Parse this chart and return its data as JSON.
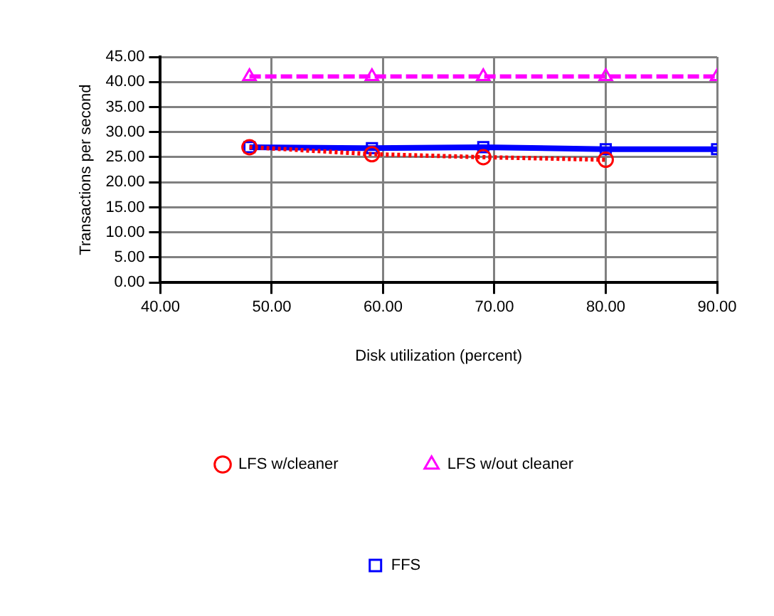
{
  "chart_data": {
    "type": "line",
    "xlabel": "Disk utilization (percent)",
    "ylabel": "Transactions per second",
    "xlim": [
      40,
      90
    ],
    "ylim": [
      0,
      45
    ],
    "xticks": [
      {
        "value": 40,
        "label": "40.00"
      },
      {
        "value": 50,
        "label": "50.00"
      },
      {
        "value": 60,
        "label": "60.00"
      },
      {
        "value": 70,
        "label": "70.00"
      },
      {
        "value": 80,
        "label": "80.00"
      },
      {
        "value": 90,
        "label": "90.00"
      }
    ],
    "yticks": [
      {
        "value": 0,
        "label": "0.00"
      },
      {
        "value": 5,
        "label": "5.00"
      },
      {
        "value": 10,
        "label": "10.00"
      },
      {
        "value": 15,
        "label": "15.00"
      },
      {
        "value": 20,
        "label": "20.00"
      },
      {
        "value": 25,
        "label": "25.00"
      },
      {
        "value": 30,
        "label": "30.00"
      },
      {
        "value": 35,
        "label": "35.00"
      },
      {
        "value": 40,
        "label": "40.00"
      },
      {
        "value": 45,
        "label": "45.00"
      }
    ],
    "grid": true,
    "legend": "bottom",
    "series": [
      {
        "name": "LFS w/cleaner",
        "color": "#ff0000",
        "x": [
          48,
          59,
          69,
          80
        ],
        "values": [
          27.0,
          25.6,
          25.0,
          24.5
        ],
        "marker": "circle",
        "line_style": "dotted"
      },
      {
        "name": "LFS w/out cleaner",
        "color": "#ff00ff",
        "x": [
          48,
          59,
          69,
          80,
          90
        ],
        "values": [
          41.1,
          41.1,
          41.1,
          41.1,
          41.1
        ],
        "marker": "triangle",
        "line_style": "dashed"
      },
      {
        "name": "FFS",
        "color": "#0000ff",
        "x": [
          48,
          59,
          69,
          80,
          90
        ],
        "values": [
          27.0,
          26.8,
          27.0,
          26.6,
          26.6
        ],
        "marker": "square",
        "line_style": "solid"
      }
    ]
  }
}
